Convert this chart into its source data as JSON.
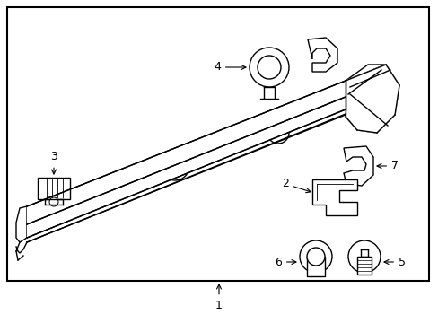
{
  "bg_color": "#ffffff",
  "border_color": "#000000",
  "line_color": "#000000",
  "label_color": "#000000",
  "border_lw": 1.5,
  "part_lw": 1.0,
  "figsize": [
    4.89,
    3.6
  ],
  "dpi": 100
}
